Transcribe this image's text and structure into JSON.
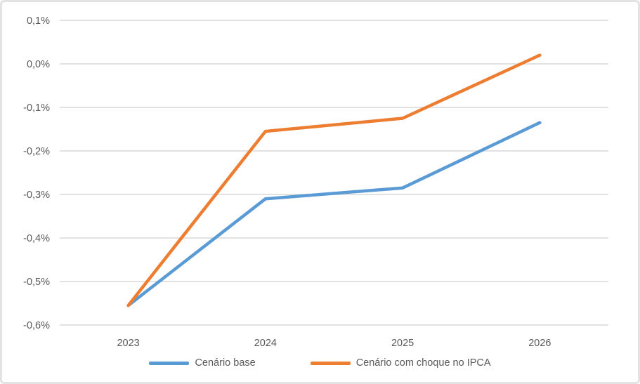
{
  "frame": {
    "background": "#FFFFFF",
    "border_color": "#E3E3E3"
  },
  "chart_data": {
    "type": "line",
    "title": "",
    "xlabel": "",
    "ylabel": "",
    "value_format": "percent, pt-BR comma decimal",
    "categories": [
      "2023",
      "2024",
      "2025",
      "2026"
    ],
    "series": [
      {
        "name": "Cenário base",
        "color": "#5B9BD5",
        "values": [
          -0.555,
          -0.31,
          -0.285,
          -0.135
        ]
      },
      {
        "name": "Cenário com choque no IPCA",
        "color": "#ED7D31",
        "values": [
          -0.555,
          -0.155,
          -0.125,
          0.02
        ]
      }
    ],
    "y_axis": {
      "min": -0.6,
      "max": 0.1,
      "step": 0.1,
      "tick_labels": [
        "0,1%",
        "0,0%",
        "-0,1%",
        "-0,2%",
        "-0,3%",
        "-0,4%",
        "-0,5%",
        "-0,6%"
      ]
    },
    "grid": true,
    "legend_position": "bottom",
    "axis_text_color": "#595959",
    "gridline_color": "#E2E2E2"
  }
}
